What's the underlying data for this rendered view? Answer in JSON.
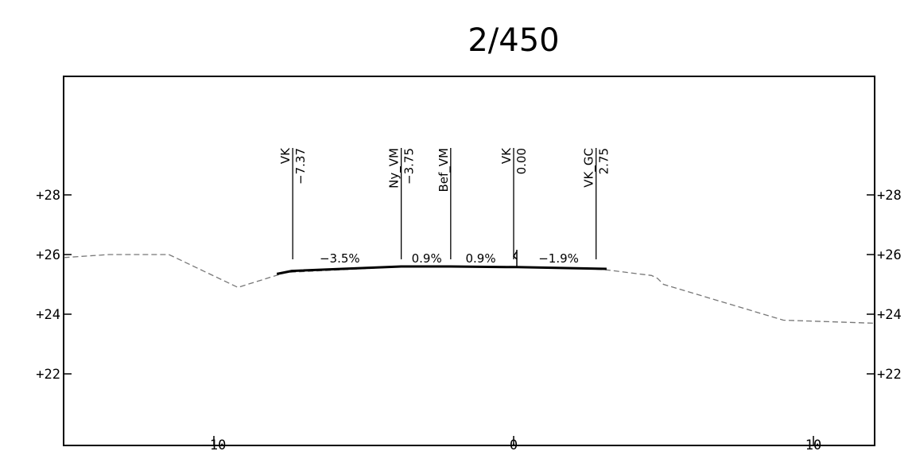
{
  "title": "2/450",
  "chart_data": {
    "type": "cross-section",
    "x_ticks": [
      "−10",
      "0",
      "10"
    ],
    "x_tick_values": [
      -10,
      0,
      10
    ],
    "y_ticks_left": [
      "+28",
      "+26",
      "+24",
      "+22"
    ],
    "y_ticks_right": [
      "+28",
      "+26",
      "+24",
      "+22"
    ],
    "y_tick_values": [
      28,
      26,
      24,
      22
    ],
    "xlim": [
      -15,
      12
    ],
    "ylim": [
      20.5,
      30
    ],
    "terrain": {
      "x": [
        -15,
        -13.5,
        -11.5,
        -9.2,
        -7.6,
        -3.5,
        0,
        3,
        4.6,
        4.8,
        5,
        9,
        10.5,
        12
      ],
      "y": [
        25.9,
        26.0,
        26.0,
        24.9,
        25.4,
        25.6,
        25.6,
        25.5,
        25.3,
        25.2,
        25.0,
        23.8,
        23.75,
        23.7
      ]
    },
    "road": {
      "x": [
        -7.9,
        -7.4,
        -3.75,
        -2.1,
        0,
        0.1,
        3.1
      ],
      "y": [
        25.35,
        25.45,
        25.6,
        25.6,
        25.58,
        25.58,
        25.52
      ]
    },
    "markers": [
      {
        "name": "VK",
        "value": "−7.37",
        "x": -7.37
      },
      {
        "name": "Ny_VM",
        "value": "−3.75",
        "x": -3.75
      },
      {
        "name": "Bef_VM",
        "value": "",
        "x": -2.1
      },
      {
        "name": "VK",
        "value": "0.00",
        "x": 0.0
      },
      {
        "name": "VK_GC",
        "value": "2.75",
        "x": 2.75
      }
    ],
    "slopes": [
      {
        "label": "−3.5%",
        "x": -5.8
      },
      {
        "label": "0.9%",
        "x": -2.9
      },
      {
        "label": "0.9%",
        "x": -1.1
      },
      {
        "label": "−1.9%",
        "x": 1.5
      }
    ]
  }
}
